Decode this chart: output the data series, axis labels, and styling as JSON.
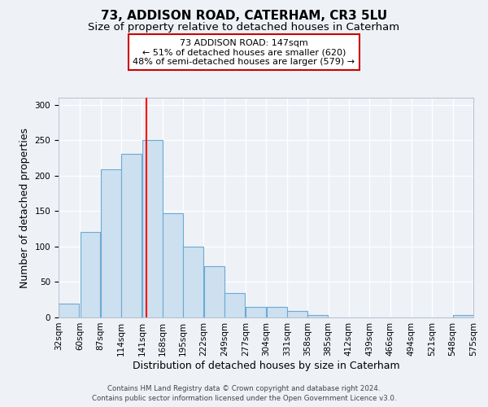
{
  "title": "73, ADDISON ROAD, CATERHAM, CR3 5LU",
  "subtitle": "Size of property relative to detached houses in Caterham",
  "xlabel": "Distribution of detached houses by size in Caterham",
  "ylabel": "Number of detached properties",
  "bar_color": "#cde0f0",
  "bar_edge_color": "#6aaad4",
  "bar_left_edges": [
    32,
    60,
    87,
    114,
    141,
    168,
    195,
    222,
    249,
    277,
    304,
    331,
    358,
    385,
    412,
    439,
    466,
    494,
    521,
    548
  ],
  "bar_heights": [
    20,
    120,
    209,
    231,
    250,
    147,
    100,
    72,
    35,
    15,
    15,
    9,
    4,
    0,
    0,
    0,
    0,
    0,
    0,
    3
  ],
  "bin_width": 27,
  "x_tick_labels": [
    "32sqm",
    "60sqm",
    "87sqm",
    "114sqm",
    "141sqm",
    "168sqm",
    "195sqm",
    "222sqm",
    "249sqm",
    "277sqm",
    "304sqm",
    "331sqm",
    "358sqm",
    "385sqm",
    "412sqm",
    "439sqm",
    "466sqm",
    "494sqm",
    "521sqm",
    "548sqm",
    "575sqm"
  ],
  "ylim": [
    0,
    310
  ],
  "yticks": [
    0,
    50,
    100,
    150,
    200,
    250,
    300
  ],
  "red_line_x": 147,
  "annotation_title": "73 ADDISON ROAD: 147sqm",
  "annotation_line1": "← 51% of detached houses are smaller (620)",
  "annotation_line2": "48% of semi-detached houses are larger (579) →",
  "annotation_box_color": "#ffffff",
  "annotation_box_edge_color": "#cc0000",
  "footnote1": "Contains HM Land Registry data © Crown copyright and database right 2024.",
  "footnote2": "Contains public sector information licensed under the Open Government Licence v3.0.",
  "background_color": "#eef2f7",
  "grid_color": "#ffffff",
  "title_fontsize": 11,
  "subtitle_fontsize": 9.5,
  "axis_label_fontsize": 9,
  "tick_fontsize": 7.5,
  "footnote_fontsize": 6.2
}
